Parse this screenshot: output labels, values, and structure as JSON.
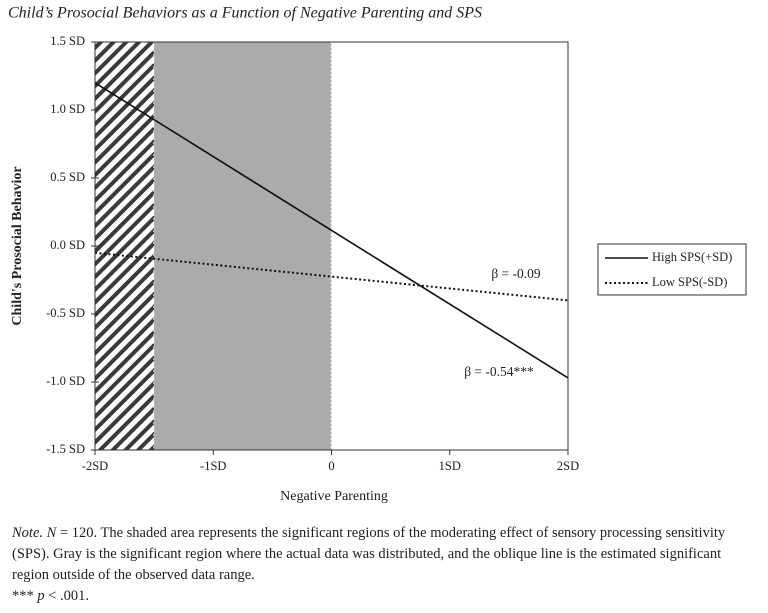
{
  "chart_data": {
    "type": "line",
    "title": "Child’s Prosocial Behaviors as a Function of Negative Parenting and SPS",
    "x_label": "Negative Parenting",
    "y_label": "Child's Prosocial Behavior",
    "x": [
      -2,
      2
    ],
    "series": [
      {
        "name": "High SPS(+SD)",
        "color": "#111111",
        "line_style": "solid",
        "values": [
          1.2,
          -0.97
        ]
      },
      {
        "name": "Low SPS(-SD)",
        "color": "#111111",
        "line_style": "dotted",
        "values": [
          -0.05,
          -0.4
        ]
      }
    ],
    "xlim": [
      -2,
      2
    ],
    "xticks": [
      {
        "value": -2,
        "label": "-2SD"
      },
      {
        "value": -1,
        "label": "-1SD"
      },
      0,
      {
        "value": 1,
        "label": "1SD"
      },
      {
        "value": 2,
        "label": "2SD"
      }
    ],
    "ylim": [
      -1.5,
      1.5
    ],
    "yticks": [
      {
        "value": -1.5,
        "label": "-1.5 SD"
      },
      {
        "value": -1,
        "label": "-1.0 SD"
      },
      {
        "value": -0.5,
        "label": "-0.5 SD"
      },
      {
        "value": 0,
        "label": "0.0 SD"
      },
      {
        "value": 0.5,
        "label": "0.5 SD"
      },
      {
        "value": 1,
        "label": "1.0 SD"
      },
      {
        "value": 1.5,
        "label": "1.5 SD"
      }
    ],
    "shaded_regions": [
      {
        "x": [
          -2,
          -1.5
        ],
        "style": "hatch"
      },
      {
        "x": [
          -1.5,
          0
        ],
        "style": "fill",
        "color": "#ababab"
      }
    ],
    "annotations": [
      "β = -0.09",
      "β = -0.54***"
    ],
    "legend": "right",
    "grid": false
  },
  "note": [
    "Note.",
    "N",
    " = 120. The shaded area represents the significant regions of the moderating effect of sensory processing sensitivity (SPS). Gray is the significant region where the actual data was distributed, and the oblique line is the estimated significant region outside of the observed data range.",
    "*** ",
    "p",
    " < .001."
  ]
}
